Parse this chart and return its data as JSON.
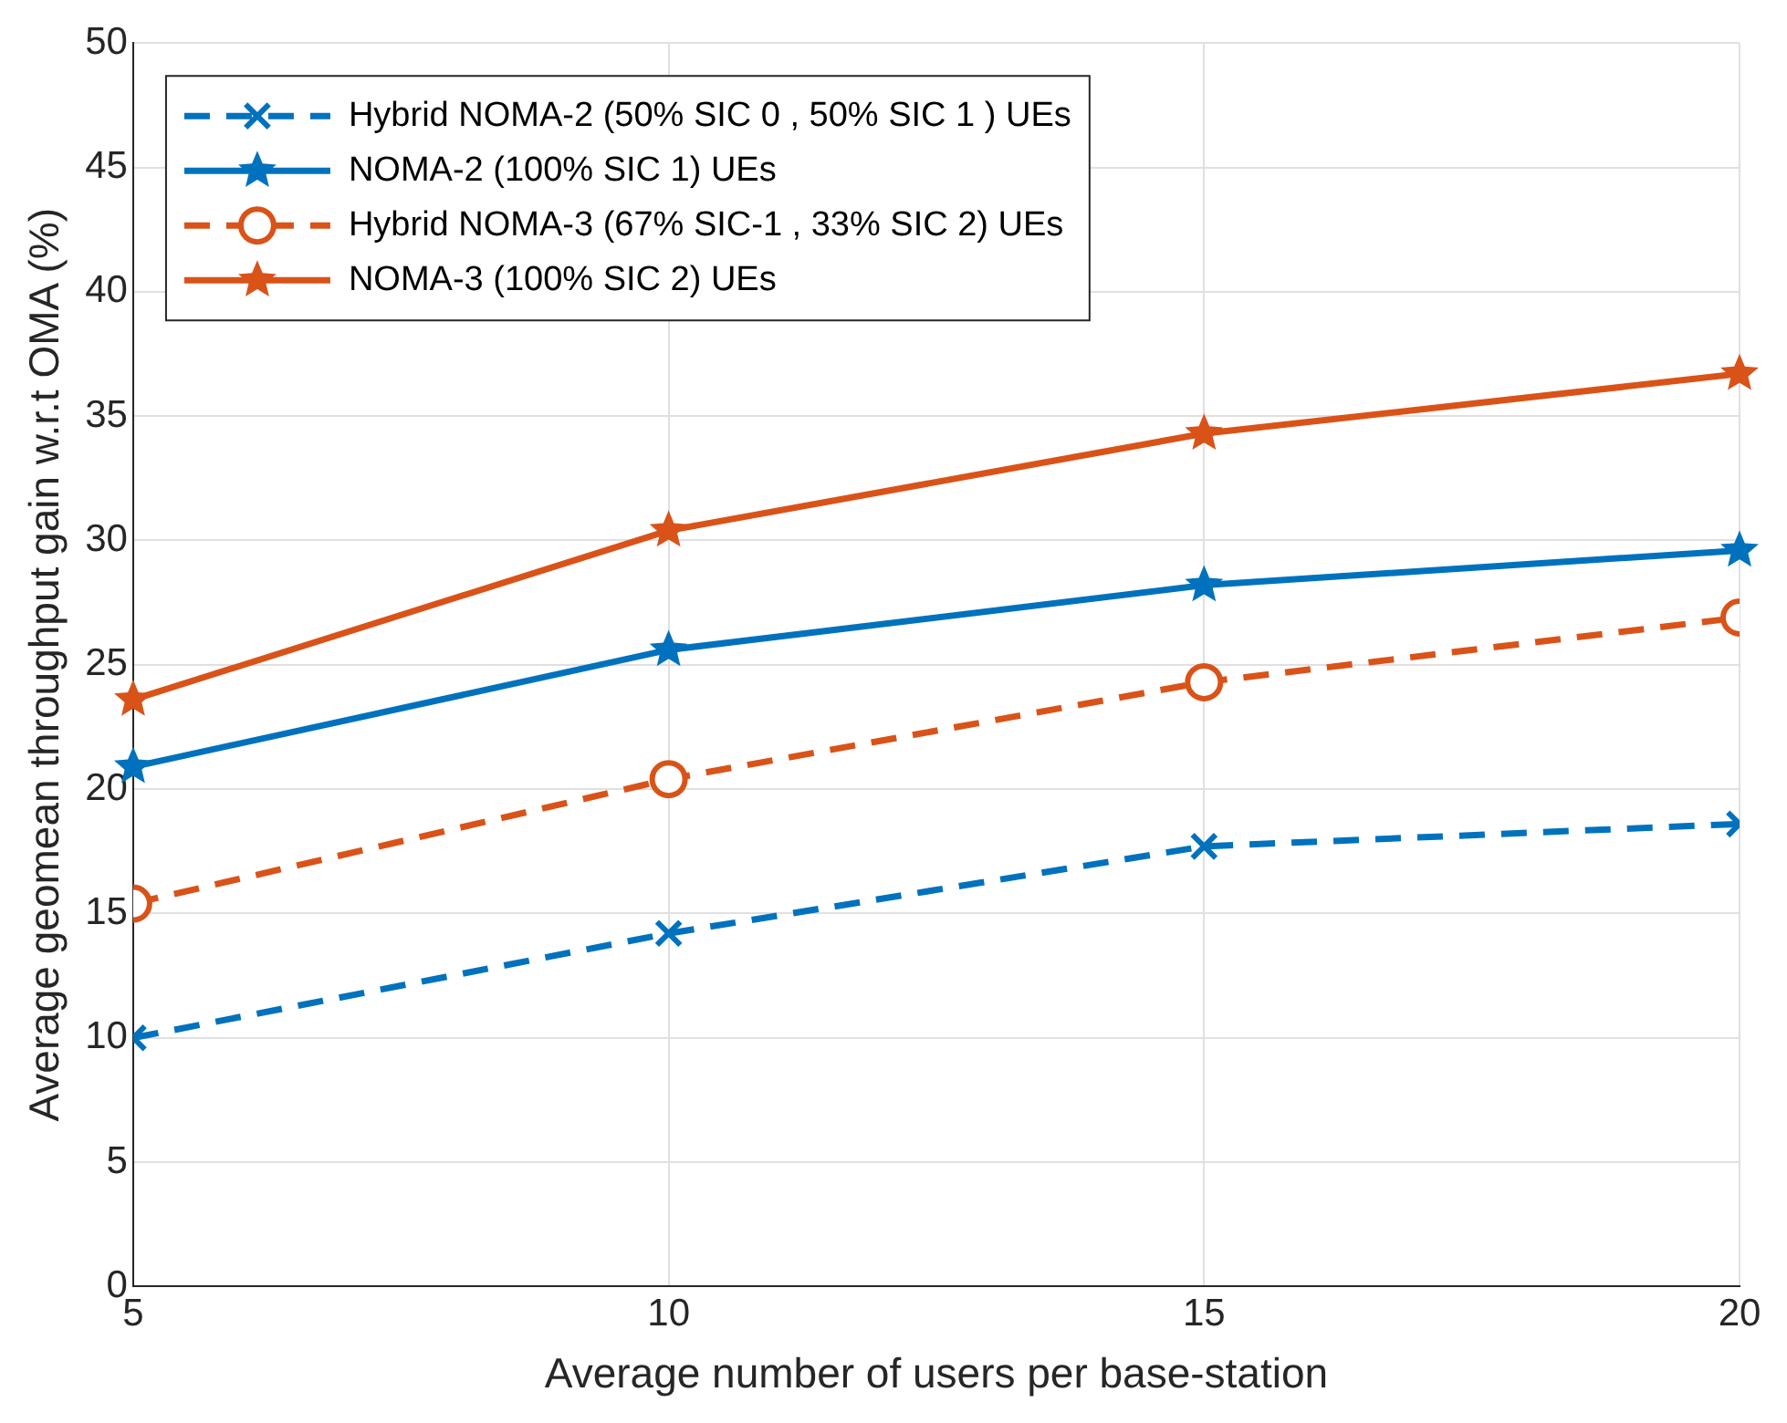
{
  "chart_data": {
    "type": "line",
    "xlabel": "Average number of users per base-station",
    "ylabel": "Average geomean throughput gain w.r.t OMA (%)",
    "x": [
      5,
      10,
      15,
      20
    ],
    "xlim": [
      5,
      20
    ],
    "xticks": [
      5,
      10,
      15,
      20
    ],
    "ylim": [
      0,
      50
    ],
    "yticks": [
      0,
      5,
      10,
      15,
      20,
      25,
      30,
      35,
      40,
      45,
      50
    ],
    "grid": true,
    "legend": "top left",
    "series": [
      {
        "name": "Hybrid NOMA-2 (50% SIC 0 , 50% SIC 1 ) UEs",
        "color": "#0072bd",
        "values": [
          10.0,
          14.2,
          17.7,
          18.6
        ],
        "marker": "cross",
        "line_style": "dashed"
      },
      {
        "name": "NOMA-2 (100% SIC 1) UEs",
        "color": "#0072bd",
        "values": [
          20.9,
          25.6,
          28.2,
          29.6
        ],
        "marker": "star",
        "line_style": "solid"
      },
      {
        "name": "Hybrid NOMA-3 (67% SIC-1 , 33% SIC 2) UEs",
        "color": "#d95319",
        "values": [
          15.4,
          20.4,
          24.3,
          26.9
        ],
        "marker": "circle",
        "line_style": "dashed"
      },
      {
        "name": "NOMA-3 (100% SIC 2) UEs",
        "color": "#d95319",
        "values": [
          23.6,
          30.4,
          34.3,
          36.7
        ],
        "marker": "star",
        "line_style": "solid"
      }
    ]
  }
}
